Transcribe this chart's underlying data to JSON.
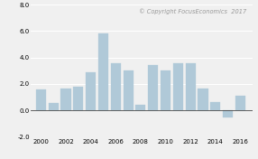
{
  "years": [
    2000,
    2001,
    2002,
    2003,
    2004,
    2005,
    2006,
    2007,
    2008,
    2009,
    2010,
    2011,
    2012,
    2013,
    2014,
    2015,
    2016
  ],
  "values": [
    1.6,
    0.55,
    1.65,
    1.8,
    2.9,
    5.85,
    3.6,
    3.0,
    0.4,
    3.45,
    3.05,
    3.55,
    3.6,
    1.65,
    0.6,
    -0.55,
    1.1
  ],
  "bar_color": "#b0c9d8",
  "bar_edge_color": "#b0c9d8",
  "ylim": [
    -2.0,
    8.0
  ],
  "yticks": [
    -2.0,
    0.0,
    2.0,
    4.0,
    6.0,
    8.0
  ],
  "ytick_labels": [
    "-2.0",
    "0.0",
    "2.0",
    "4.0",
    "6.0",
    "8.0"
  ],
  "xticks": [
    2000,
    2002,
    2004,
    2006,
    2008,
    2010,
    2012,
    2014,
    2016
  ],
  "annotation": "© Copyright FocusEconomics  2017",
  "annotation_color": "#999999",
  "annotation_fontsize": 4.8,
  "background_color": "#f0f0f0",
  "grid_color": "#ffffff",
  "zero_line_color": "#444444"
}
